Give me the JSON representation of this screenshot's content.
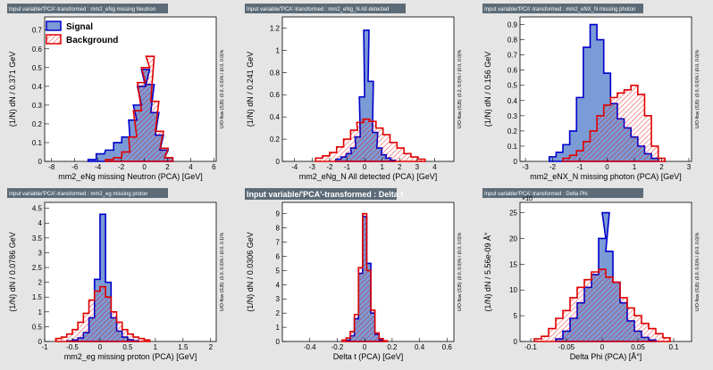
{
  "colors": {
    "background": "#e5e5e5",
    "frame": "#ffffff",
    "title_box": "#5c6b77",
    "signal_fill": "#7b9bd6",
    "signal_line": "#0000cc",
    "background_line": "#e00000"
  },
  "legend": {
    "signal": "Signal",
    "background": "Background"
  },
  "chart_data": [
    {
      "type": "histogram",
      "title": "Input variable/'PCA'-transformed : mm2_eNg missing Neutron",
      "xlabel": "mm2_eNg missing Neutron (PCA)  [GeV]",
      "ylabel": "(1/N) dN  /  0.371 GeV",
      "overflow": "U/O-flow (S,B): (0.0, 0.0)% / (0.0, 0.0)%",
      "xlim": [
        -8.6,
        6.2
      ],
      "ylim": [
        0,
        0.77
      ],
      "xticks": [
        -8,
        -6,
        -4,
        -2,
        0,
        2,
        4,
        6
      ],
      "yticks": [
        0,
        0.1,
        0.2,
        0.3,
        0.4,
        0.5,
        0.6,
        0.7
      ],
      "xticklabels": [
        "-8",
        "-6",
        "-4",
        "-2",
        "0",
        "2",
        "4",
        "6"
      ],
      "yticklabels": [
        "0",
        "0.1",
        "0.2",
        "0.3",
        "0.4",
        "0.5",
        "0.6",
        "0.7"
      ],
      "legend": true,
      "signal": [
        [
          -4.5,
          0.01
        ],
        [
          -3.8,
          0.04
        ],
        [
          -3.0,
          0.06
        ],
        [
          -2.3,
          0.1
        ],
        [
          -1.6,
          0.13
        ],
        [
          -1.0,
          0.22
        ],
        [
          -0.6,
          0.3
        ],
        [
          -0.25,
          0.4
        ],
        [
          0.1,
          0.49
        ],
        [
          0.5,
          0.41
        ],
        [
          0.9,
          0.26
        ],
        [
          1.3,
          0.14
        ],
        [
          1.7,
          0.06
        ],
        [
          2.1,
          0.02
        ]
      ],
      "background": [
        [
          -3.0,
          0.01
        ],
        [
          -2.3,
          0.02
        ],
        [
          -1.6,
          0.05
        ],
        [
          -1.0,
          0.13
        ],
        [
          -0.6,
          0.27
        ],
        [
          -0.25,
          0.42
        ],
        [
          0.1,
          0.5
        ],
        [
          0.5,
          0.56
        ],
        [
          0.9,
          0.32
        ],
        [
          1.3,
          0.16
        ],
        [
          1.7,
          0.07
        ],
        [
          2.1,
          0.02
        ]
      ]
    },
    {
      "type": "histogram",
      "title": "Input variable/'PCA'-transformed : mm2_eNg_N All detected",
      "xlabel": "mm2_eNg_N All detected (PCA)  [GeV]",
      "ylabel": "(1/N) dN  /  0.241 GeV",
      "overflow": "U/O-flow (S,B): (0.2, 0.0)% / (0.0, 0.0)%",
      "xlim": [
        -4.7,
        5.1
      ],
      "ylim": [
        0,
        1.3
      ],
      "xticks": [
        -4,
        -3,
        -2,
        -1,
        0,
        1,
        2,
        3,
        4
      ],
      "yticks": [
        0,
        0.2,
        0.4,
        0.6,
        0.8,
        1,
        1.2
      ],
      "xticklabels": [
        "-4",
        "-3",
        "-2",
        "-1",
        "0",
        "1",
        "2",
        "3",
        "4"
      ],
      "yticklabels": [
        "0",
        "0.2",
        "0.4",
        "0.6",
        "0.8",
        "1",
        "1.2"
      ],
      "legend": false,
      "signal": [
        [
          -1.5,
          0.02
        ],
        [
          -1.2,
          0.04
        ],
        [
          -0.9,
          0.07
        ],
        [
          -0.65,
          0.12
        ],
        [
          -0.4,
          0.22
        ],
        [
          -0.15,
          0.58
        ],
        [
          0.1,
          1.18
        ],
        [
          0.35,
          0.72
        ],
        [
          0.6,
          0.26
        ],
        [
          0.85,
          0.12
        ],
        [
          1.1,
          0.06
        ],
        [
          1.35,
          0.03
        ],
        [
          1.6,
          0.01
        ]
      ],
      "background": [
        [
          -2.6,
          0.03
        ],
        [
          -2.2,
          0.05
        ],
        [
          -1.8,
          0.08
        ],
        [
          -1.4,
          0.13
        ],
        [
          -1.0,
          0.2
        ],
        [
          -0.6,
          0.28
        ],
        [
          -0.25,
          0.35
        ],
        [
          0.1,
          0.38
        ],
        [
          0.45,
          0.36
        ],
        [
          0.85,
          0.3
        ],
        [
          1.25,
          0.24
        ],
        [
          1.65,
          0.17
        ],
        [
          2.05,
          0.12
        ],
        [
          2.45,
          0.07
        ],
        [
          2.85,
          0.04
        ],
        [
          3.25,
          0.02
        ]
      ]
    },
    {
      "type": "histogram",
      "title": "Input variable/'PCA'-transformed : mm2_eNX_N missing photon",
      "xlabel": "mm2_eNX_N missing photon (PCA)  [GeV]",
      "ylabel": "(1/N) dN  /  0.156 GeV",
      "overflow": "U/O-flow (S,B): (0.0, 0.0)% / (0.0, 0.0)%",
      "xlim": [
        -3.2,
        3.1
      ],
      "ylim": [
        0,
        0.95
      ],
      "xticks": [
        -3,
        -2,
        -1,
        0,
        1,
        2,
        3
      ],
      "yticks": [
        0,
        0.1,
        0.2,
        0.3,
        0.4,
        0.5,
        0.6,
        0.7,
        0.8,
        0.9
      ],
      "xticklabels": [
        "-3",
        "-2",
        "-1",
        "0",
        "1",
        "2",
        "3"
      ],
      "yticklabels": [
        "0",
        "0.1",
        "0.2",
        "0.3",
        "0.4",
        "0.5",
        "0.6",
        "0.7",
        "0.8",
        "0.9"
      ],
      "legend": false,
      "signal": [
        [
          -2.0,
          0.03
        ],
        [
          -1.75,
          0.06
        ],
        [
          -1.5,
          0.11
        ],
        [
          -1.25,
          0.2
        ],
        [
          -1.0,
          0.42
        ],
        [
          -0.75,
          0.75
        ],
        [
          -0.5,
          0.9
        ],
        [
          -0.25,
          0.8
        ],
        [
          0.0,
          0.58
        ],
        [
          0.25,
          0.38
        ],
        [
          0.5,
          0.28
        ],
        [
          0.75,
          0.22
        ],
        [
          1.0,
          0.16
        ],
        [
          1.25,
          0.1
        ],
        [
          1.5,
          0.05
        ],
        [
          1.75,
          0.02
        ]
      ],
      "background": [
        [
          -1.5,
          0.02
        ],
        [
          -1.25,
          0.04
        ],
        [
          -1.0,
          0.07
        ],
        [
          -0.75,
          0.13
        ],
        [
          -0.5,
          0.2
        ],
        [
          -0.25,
          0.3
        ],
        [
          0.0,
          0.37
        ],
        [
          0.25,
          0.42
        ],
        [
          0.5,
          0.45
        ],
        [
          0.75,
          0.47
        ],
        [
          1.0,
          0.5
        ],
        [
          1.25,
          0.44
        ],
        [
          1.5,
          0.3
        ],
        [
          1.75,
          0.1
        ],
        [
          2.0,
          0.02
        ]
      ]
    },
    {
      "type": "histogram",
      "title": "Input variable/'PCA'-transformed : mm2_eg missing proton",
      "xlabel": "mm2_eg missing proton (PCA)  [GeV]",
      "ylabel": "(1/N) dN  /  0.0786 GeV",
      "overflow": "U/O-flow (S,B): (0.0, 0.0)% / (0.0, 0.1)%",
      "xlim": [
        -1,
        2.1
      ],
      "ylim": [
        0,
        4.7
      ],
      "xticks": [
        -1,
        -0.5,
        0,
        0.5,
        1,
        1.5,
        2
      ],
      "yticks": [
        0,
        0.5,
        1,
        1.5,
        2,
        2.5,
        3,
        3.5,
        4,
        4.5
      ],
      "xticklabels": [
        "-1",
        "-0.5",
        "0",
        "0.5",
        "1",
        "1.5",
        "2"
      ],
      "yticklabels": [
        "0",
        "0.5",
        "1",
        "1.5",
        "2",
        "2.5",
        "3",
        "3.5",
        "4",
        "4.5"
      ],
      "legend": false,
      "signal": [
        [
          -0.55,
          0.02
        ],
        [
          -0.45,
          0.05
        ],
        [
          -0.35,
          0.12
        ],
        [
          -0.25,
          0.3
        ],
        [
          -0.15,
          0.8
        ],
        [
          -0.05,
          2.1
        ],
        [
          0.05,
          4.3
        ],
        [
          0.15,
          2.0
        ],
        [
          0.25,
          0.8
        ],
        [
          0.35,
          0.35
        ],
        [
          0.45,
          0.15
        ],
        [
          0.55,
          0.06
        ],
        [
          0.65,
          0.02
        ]
      ],
      "background": [
        [
          -0.75,
          0.1
        ],
        [
          -0.65,
          0.15
        ],
        [
          -0.55,
          0.25
        ],
        [
          -0.45,
          0.4
        ],
        [
          -0.35,
          0.65
        ],
        [
          -0.25,
          0.95
        ],
        [
          -0.15,
          1.4
        ],
        [
          -0.05,
          1.7
        ],
        [
          0.05,
          1.85
        ],
        [
          0.15,
          1.5
        ],
        [
          0.25,
          1.0
        ],
        [
          0.35,
          0.65
        ],
        [
          0.45,
          0.4
        ],
        [
          0.55,
          0.25
        ],
        [
          0.65,
          0.15
        ],
        [
          0.75,
          0.1
        ],
        [
          0.85,
          0.05
        ]
      ]
    },
    {
      "type": "histogram",
      "title": "Input variable/'PCA'-transformed : Delta t",
      "xlabel": "Delta t (PCA)  [GeV]",
      "ylabel": "(1/N) dN  /  0.0306 GeV",
      "overflow": "U/O-flow (S,B): (0.0, 0.0)% / (0.0, 0.0)%",
      "xlim": [
        -0.6,
        0.65
      ],
      "ylim": [
        0,
        9.8
      ],
      "xticks": [
        -0.4,
        -0.2,
        0,
        0.2,
        0.4,
        0.6
      ],
      "yticks": [
        0,
        1,
        2,
        3,
        4,
        5,
        6,
        7,
        8,
        9
      ],
      "xticklabels": [
        "-0.4",
        "-0.2",
        "0",
        "0.2",
        "0.4",
        "0.6"
      ],
      "yticklabels": [
        "0",
        "1",
        "2",
        "3",
        "4",
        "5",
        "6",
        "7",
        "8",
        "9"
      ],
      "legend": false,
      "signal": [
        [
          -0.12,
          0.1
        ],
        [
          -0.09,
          0.4
        ],
        [
          -0.06,
          1.6
        ],
        [
          -0.03,
          4.8
        ],
        [
          0.0,
          8.8
        ],
        [
          0.03,
          5.5
        ],
        [
          0.06,
          2.0
        ],
        [
          0.09,
          0.5
        ],
        [
          0.12,
          0.1
        ]
      ],
      "background": [
        [
          -0.15,
          0.1
        ],
        [
          -0.12,
          0.25
        ],
        [
          -0.09,
          0.7
        ],
        [
          -0.06,
          1.9
        ],
        [
          -0.03,
          5.2
        ],
        [
          0.0,
          9.0
        ],
        [
          0.03,
          5.0
        ],
        [
          0.06,
          2.2
        ],
        [
          0.09,
          0.6
        ],
        [
          0.12,
          0.2
        ],
        [
          0.15,
          0.05
        ]
      ]
    },
    {
      "type": "histogram",
      "title": "Input variable/'PCA'-transformed : Delta Phi",
      "xlabel": "Delta Phi (PCA)  [Å°]",
      "ylabel": "(1/N) dN  /  5.56e-09 Å°",
      "exponent": "×10",
      "overflow": "U/O-flow (S,B): (0.0, 0.0)% / (0.0, 0.0)%",
      "xlim": [
        -0.115,
        0.125
      ],
      "ylim": [
        0,
        27
      ],
      "xticks": [
        -0.1,
        -0.05,
        0,
        0.05,
        0.1
      ],
      "yticks": [
        0,
        5,
        10,
        15,
        20,
        25
      ],
      "xticklabels": [
        "-0.1",
        "-0.05",
        "0",
        "0.05",
        "0.1"
      ],
      "yticklabels": [
        "0",
        "5",
        "10",
        "15",
        "20",
        "25"
      ],
      "legend": false,
      "signal": [
        [
          -0.06,
          0.5
        ],
        [
          -0.05,
          2.0
        ],
        [
          -0.04,
          4.5
        ],
        [
          -0.03,
          7.5
        ],
        [
          -0.02,
          10.5
        ],
        [
          -0.01,
          13.0
        ],
        [
          0.0,
          20.0
        ],
        [
          0.005,
          25.0
        ],
        [
          0.01,
          17.5
        ],
        [
          0.02,
          11.5
        ],
        [
          0.03,
          7.5
        ],
        [
          0.04,
          4.0
        ],
        [
          0.05,
          2.0
        ],
        [
          0.06,
          0.8
        ],
        [
          0.07,
          0.3
        ]
      ],
      "background": [
        [
          -0.09,
          0.5
        ],
        [
          -0.08,
          1.0
        ],
        [
          -0.07,
          2.5
        ],
        [
          -0.06,
          4.5
        ],
        [
          -0.05,
          6.0
        ],
        [
          -0.04,
          8.5
        ],
        [
          -0.03,
          10.5
        ],
        [
          -0.02,
          12.0
        ],
        [
          -0.01,
          13.5
        ],
        [
          0.0,
          14.0
        ],
        [
          0.01,
          12.5
        ],
        [
          0.02,
          11.5
        ],
        [
          0.03,
          8.5
        ],
        [
          0.04,
          6.5
        ],
        [
          0.05,
          5.0
        ],
        [
          0.06,
          3.5
        ],
        [
          0.07,
          2.5
        ],
        [
          0.08,
          1.5
        ],
        [
          0.09,
          0.7
        ]
      ]
    }
  ]
}
